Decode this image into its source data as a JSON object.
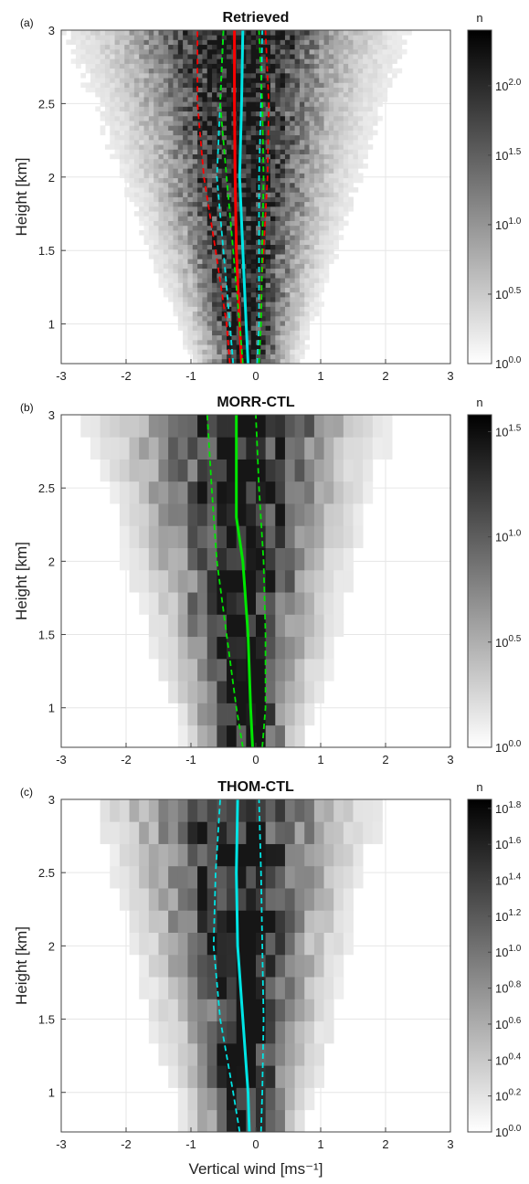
{
  "figure": {
    "xlabel": "Vertical wind [ms⁻¹]",
    "ylabel": "Height [km]"
  },
  "chart_data": [
    {
      "type": "heatmap",
      "panel_label": "(a)",
      "title": "Retrieved",
      "ylabel": "Height [km]",
      "xlim": [
        -3,
        3
      ],
      "ylim": [
        0.73,
        3.0
      ],
      "xticks": [
        -3,
        -2,
        -1,
        0,
        1,
        2,
        3
      ],
      "xtick_labels": [
        "-3",
        "-2",
        "-1",
        "0",
        "1",
        "2",
        "3"
      ],
      "yticks": [
        1,
        1.5,
        2,
        2.5,
        3
      ],
      "ytick_labels": [
        "1",
        "1.5",
        "2",
        "2.5",
        "3"
      ],
      "grid": true,
      "colorbar": {
        "label": "n",
        "scale": "log10",
        "range": [
          0,
          2.4
        ],
        "tick_exponents": [
          0,
          0.5,
          1,
          1.5,
          2
        ],
        "tick_labels": [
          "0.0",
          "0.5",
          "1.0",
          "1.5",
          "2.0"
        ]
      },
      "density": {
        "x_bins": 80,
        "z_bins": 70,
        "sigma_bottom": 0.35,
        "sigma_top": 1.1,
        "max_exponent": 2.4
      },
      "series": [
        {
          "role": "mean",
          "color": "#ff0000",
          "style": "solid",
          "points": [
            [
              -0.22,
              0.73
            ],
            [
              -0.25,
              1.0
            ],
            [
              -0.3,
              1.5
            ],
            [
              -0.32,
              2.0
            ],
            [
              -0.33,
              2.5
            ],
            [
              -0.33,
              3.0
            ]
          ]
        },
        {
          "role": "low",
          "color": "#ff0000",
          "style": "dashed",
          "points": [
            [
              -0.4,
              0.73
            ],
            [
              -0.45,
              1.0
            ],
            [
              -0.62,
              1.5
            ],
            [
              -0.8,
              2.0
            ],
            [
              -0.9,
              2.5
            ],
            [
              -0.9,
              3.0
            ]
          ]
        },
        {
          "role": "high",
          "color": "#ff0000",
          "style": "dashed",
          "points": [
            [
              0.02,
              0.73
            ],
            [
              0.05,
              1.0
            ],
            [
              0.12,
              1.5
            ],
            [
              0.18,
              2.0
            ],
            [
              0.2,
              2.5
            ],
            [
              0.15,
              3.0
            ]
          ]
        },
        {
          "role": "mean",
          "color": "#00e5e5",
          "style": "solid",
          "points": [
            [
              -0.12,
              0.73
            ],
            [
              -0.15,
              1.0
            ],
            [
              -0.2,
              1.5
            ],
            [
              -0.25,
              2.0
            ],
            [
              -0.22,
              2.5
            ],
            [
              -0.2,
              3.0
            ]
          ]
        },
        {
          "role": "low",
          "color": "#00e5e5",
          "style": "dashed",
          "points": [
            [
              -0.35,
              0.73
            ],
            [
              -0.4,
              1.0
            ],
            [
              -0.5,
              1.5
            ],
            [
              -0.6,
              2.0
            ],
            [
              -0.55,
              2.5
            ],
            [
              -0.5,
              3.0
            ]
          ]
        },
        {
          "role": "high",
          "color": "#00e5e5",
          "style": "dashed",
          "points": [
            [
              0.02,
              0.73
            ],
            [
              0.05,
              1.0
            ],
            [
              0.05,
              1.5
            ],
            [
              0.05,
              2.0
            ],
            [
              0.08,
              2.5
            ],
            [
              0.1,
              3.0
            ]
          ]
        },
        {
          "role": "mean",
          "color": "#00e600",
          "style": "dashed",
          "points": [
            [
              -0.2,
              0.73
            ],
            [
              -0.25,
              1.0
            ],
            [
              -0.35,
              1.5
            ],
            [
              -0.45,
              2.0
            ],
            [
              -0.55,
              2.5
            ],
            [
              -0.5,
              3.0
            ]
          ]
        },
        {
          "role": "high",
          "color": "#00e600",
          "style": "dashed",
          "points": [
            [
              0.05,
              0.73
            ],
            [
              0.08,
              1.0
            ],
            [
              0.1,
              1.5
            ],
            [
              0.12,
              2.0
            ],
            [
              0.1,
              2.5
            ],
            [
              0.05,
              3.0
            ]
          ]
        }
      ]
    },
    {
      "type": "heatmap",
      "panel_label": "(b)",
      "title": "MORR-CTL",
      "ylabel": "Height [km]",
      "xlim": [
        -3,
        3
      ],
      "ylim": [
        0.73,
        3.0
      ],
      "xticks": [
        -3,
        -2,
        -1,
        0,
        1,
        2,
        3
      ],
      "xtick_labels": [
        "-3",
        "-2",
        "-1",
        "0",
        "1",
        "2",
        "3"
      ],
      "yticks": [
        1,
        1.5,
        2,
        2.5,
        3
      ],
      "ytick_labels": [
        "1",
        "1.5",
        "2",
        "2.5",
        "3"
      ],
      "grid": true,
      "colorbar": {
        "label": "n",
        "scale": "log10",
        "range": [
          0,
          1.58
        ],
        "tick_exponents": [
          0,
          0.5,
          1,
          1.5
        ],
        "tick_labels": [
          "0.0",
          "0.5",
          "1.0",
          "1.5"
        ]
      },
      "density": {
        "x_bins": 40,
        "z_bins": 15,
        "sigma_bottom": 0.4,
        "sigma_top": 1.0,
        "max_exponent": 1.58
      },
      "series": [
        {
          "role": "mean",
          "color": "#00e600",
          "style": "solid",
          "points": [
            [
              -0.05,
              0.73
            ],
            [
              -0.08,
              1.0
            ],
            [
              -0.12,
              1.5
            ],
            [
              -0.2,
              2.0
            ],
            [
              -0.3,
              2.3
            ],
            [
              -0.3,
              2.5
            ],
            [
              -0.3,
              3.0
            ]
          ]
        },
        {
          "role": "low",
          "color": "#00e600",
          "style": "dashed",
          "points": [
            [
              -0.2,
              0.73
            ],
            [
              -0.3,
              1.0
            ],
            [
              -0.45,
              1.5
            ],
            [
              -0.6,
              2.0
            ],
            [
              -0.68,
              2.5
            ],
            [
              -0.75,
              3.0
            ]
          ]
        },
        {
          "role": "high",
          "color": "#00e600",
          "style": "dashed",
          "points": [
            [
              0.1,
              0.73
            ],
            [
              0.15,
              1.0
            ],
            [
              0.15,
              1.5
            ],
            [
              0.12,
              2.0
            ],
            [
              0.05,
              2.5
            ],
            [
              0.0,
              3.0
            ]
          ]
        }
      ]
    },
    {
      "type": "heatmap",
      "panel_label": "(c)",
      "title": "THOM-CTL",
      "ylabel": "Height [km]",
      "xlabel": "Vertical wind [ms⁻¹]",
      "xlim": [
        -3,
        3
      ],
      "ylim": [
        0.73,
        3.0
      ],
      "xticks": [
        -3,
        -2,
        -1,
        0,
        1,
        2,
        3
      ],
      "xtick_labels": [
        "-3",
        "-2",
        "-1",
        "0",
        "1",
        "2",
        "3"
      ],
      "yticks": [
        1,
        1.5,
        2,
        2.5,
        3
      ],
      "ytick_labels": [
        "1",
        "1.5",
        "2",
        "2.5",
        "3"
      ],
      "grid": true,
      "colorbar": {
        "label": "n",
        "scale": "log10",
        "range": [
          0,
          1.85
        ],
        "tick_exponents": [
          0,
          0.2,
          0.4,
          0.6,
          0.8,
          1.0,
          1.2,
          1.4,
          1.6,
          1.8
        ],
        "tick_labels": [
          "0.0",
          "0.2",
          "0.4",
          "0.6",
          "0.8",
          "1.0",
          "1.2",
          "1.4",
          "1.6",
          "1.8"
        ]
      },
      "density": {
        "x_bins": 40,
        "z_bins": 15,
        "sigma_bottom": 0.4,
        "sigma_top": 0.95,
        "max_exponent": 1.85
      },
      "series": [
        {
          "role": "mean",
          "color": "#00e5e5",
          "style": "solid",
          "points": [
            [
              -0.1,
              0.73
            ],
            [
              -0.12,
              1.0
            ],
            [
              -0.2,
              1.5
            ],
            [
              -0.28,
              2.0
            ],
            [
              -0.3,
              2.5
            ],
            [
              -0.28,
              3.0
            ]
          ]
        },
        {
          "role": "low",
          "color": "#00e5e5",
          "style": "dashed",
          "points": [
            [
              -0.25,
              0.73
            ],
            [
              -0.35,
              1.0
            ],
            [
              -0.55,
              1.5
            ],
            [
              -0.65,
              2.0
            ],
            [
              -0.62,
              2.5
            ],
            [
              -0.55,
              3.0
            ]
          ]
        },
        {
          "role": "high",
          "color": "#00e5e5",
          "style": "dashed",
          "points": [
            [
              0.08,
              0.73
            ],
            [
              0.1,
              1.0
            ],
            [
              0.12,
              1.5
            ],
            [
              0.1,
              2.0
            ],
            [
              0.08,
              2.5
            ],
            [
              0.05,
              3.0
            ]
          ]
        }
      ]
    }
  ]
}
